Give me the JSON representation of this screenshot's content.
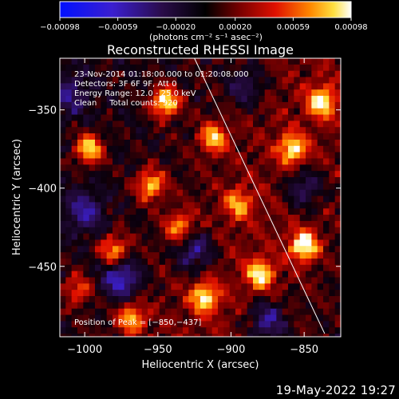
{
  "chart_data": {
    "type": "heatmap",
    "title": "Reconstructed RHESSI Image",
    "xlabel": "Heliocentric X (arcsec)",
    "ylabel": "Heliocentric Y (arcsec)",
    "xlim": [
      -1017,
      -825
    ],
    "ylim": [
      -495,
      -317
    ],
    "x_ticks": [
      -1000,
      -950,
      -900,
      -850
    ],
    "x_tick_labels": [
      "−1000",
      "−950",
      "−900",
      "−850"
    ],
    "y_ticks": [
      -350,
      -400,
      -450
    ],
    "y_tick_labels": [
      "−350",
      "−400",
      "−450"
    ],
    "colorbar": {
      "range": [
        -0.00098,
        0.00098
      ],
      "ticks": [
        -0.00098,
        -0.00059,
        -0.0002,
        0.0002,
        0.00059,
        0.00098
      ],
      "tick_labels": [
        "−0.00098",
        "−0.00059",
        "−0.00020",
        "0.00020",
        "0.00059",
        "0.00098"
      ],
      "units_label": "(photons cm⁻² s⁻¹ asec⁻²)",
      "colormap": "RHESSI blue-black-red-yellow-white"
    },
    "annotations": [
      "23-Nov-2014 01:18:00.000 to 01:20:08.000",
      "Detectors: 3F 6F 9F, Att 0",
      "Energy Range: 12.0 - 25.0 keV",
      "Clean     Total counts: 920"
    ],
    "peak_label": "Position of Peak = [−850,−437]",
    "peak_position": [
      -850,
      -437
    ],
    "limb_line": {
      "from": [
        -925,
        -317
      ],
      "to": [
        -836,
        -493
      ],
      "color": "#ffffff"
    },
    "bright_spots": [
      {
        "x": -945,
        "y": -345,
        "value": 0.00098
      },
      {
        "x": -997,
        "y": -375,
        "value": 0.0009
      },
      {
        "x": -955,
        "y": -398,
        "value": 0.0008
      },
      {
        "x": -912,
        "y": -368,
        "value": 0.00075
      },
      {
        "x": -858,
        "y": -375,
        "value": 0.0008
      },
      {
        "x": -838,
        "y": -345,
        "value": 0.00085
      },
      {
        "x": -850,
        "y": -437,
        "value": 0.00098
      },
      {
        "x": -880,
        "y": -455,
        "value": 0.0008
      },
      {
        "x": -980,
        "y": -440,
        "value": 0.00075
      },
      {
        "x": -968,
        "y": -483,
        "value": 0.0007
      },
      {
        "x": -918,
        "y": -470,
        "value": 0.0008
      },
      {
        "x": -1005,
        "y": -465,
        "value": 0.00055
      },
      {
        "x": -895,
        "y": -410,
        "value": 0.0006
      },
      {
        "x": -935,
        "y": -425,
        "value": 0.00065
      }
    ],
    "dark_spots": [
      {
        "x": -975,
        "y": -458,
        "value": -0.0007
      },
      {
        "x": -925,
        "y": -440,
        "value": -0.0006
      },
      {
        "x": -1000,
        "y": -415,
        "value": -0.0005
      },
      {
        "x": -875,
        "y": -485,
        "value": -0.0006
      },
      {
        "x": -850,
        "y": -400,
        "value": -0.0005
      },
      {
        "x": -1010,
        "y": -340,
        "value": -0.0004
      },
      {
        "x": -890,
        "y": -335,
        "value": -0.0004
      }
    ]
  },
  "footer": {
    "timestamp": "19-May-2022 19:27"
  }
}
